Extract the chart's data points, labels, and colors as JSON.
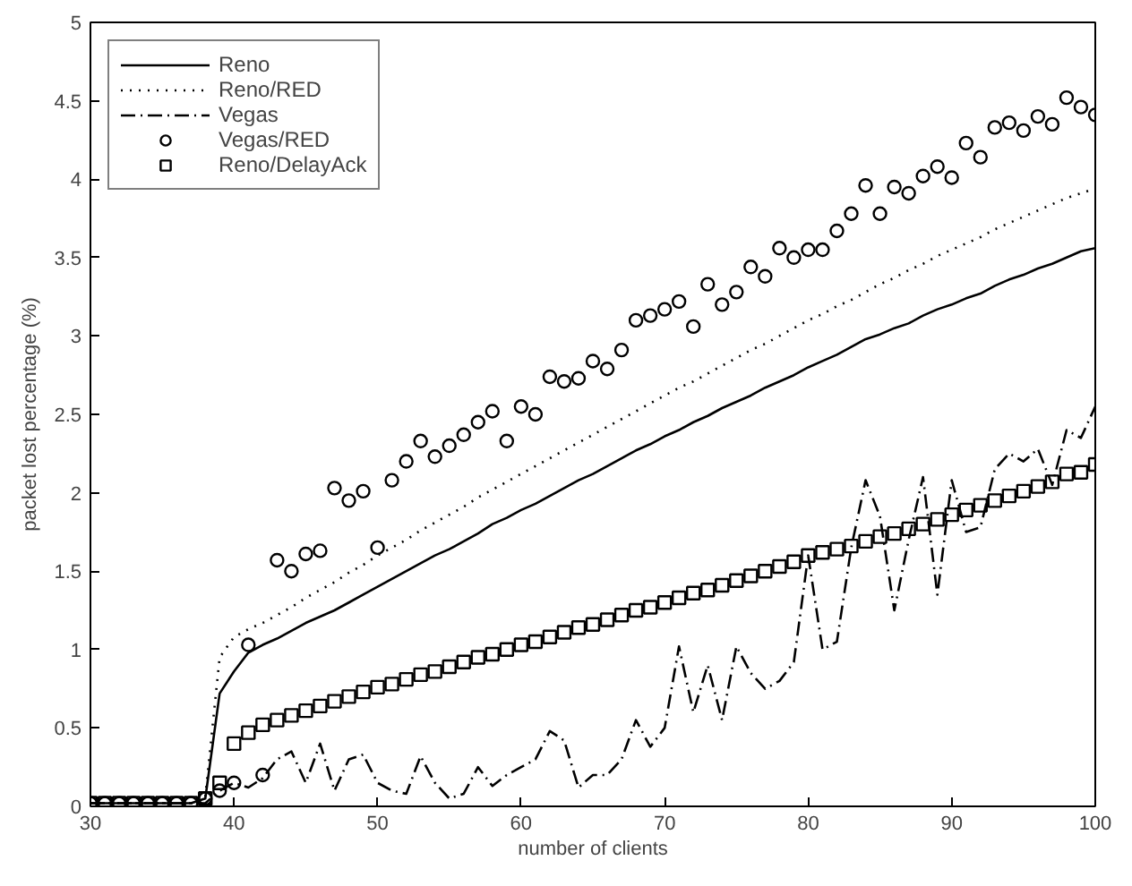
{
  "chart_data": {
    "type": "line",
    "xlabel": "number of clients",
    "ylabel": "packet lost percentage (%)",
    "x": [
      30,
      31,
      32,
      33,
      34,
      35,
      36,
      37,
      38,
      39,
      40,
      41,
      42,
      43,
      44,
      45,
      46,
      47,
      48,
      49,
      50,
      51,
      52,
      53,
      54,
      55,
      56,
      57,
      58,
      59,
      60,
      61,
      62,
      63,
      64,
      65,
      66,
      67,
      68,
      69,
      70,
      71,
      72,
      73,
      74,
      75,
      76,
      77,
      78,
      79,
      80,
      81,
      82,
      83,
      84,
      85,
      86,
      87,
      88,
      89,
      90,
      91,
      92,
      93,
      94,
      95,
      96,
      97,
      98,
      99,
      100
    ],
    "xlim": [
      30,
      100
    ],
    "xticks": [
      30,
      40,
      50,
      60,
      70,
      80,
      90,
      100
    ],
    "ylim": [
      0,
      5
    ],
    "yticks": [
      0,
      0.5,
      1,
      1.5,
      2,
      2.5,
      3,
      3.5,
      4,
      4.5,
      5
    ],
    "grid": false,
    "legend": "top left",
    "series": [
      {
        "name": "Reno",
        "type": "line",
        "line_style": "solid",
        "color": "#000000",
        "values": [
          0.02,
          0.02,
          0.02,
          0.02,
          0.02,
          0.02,
          0.02,
          0.02,
          0.05,
          0.72,
          0.86,
          0.98,
          1.03,
          1.07,
          1.12,
          1.17,
          1.21,
          1.25,
          1.3,
          1.35,
          1.4,
          1.45,
          1.5,
          1.55,
          1.6,
          1.64,
          1.69,
          1.74,
          1.8,
          1.84,
          1.89,
          1.93,
          1.98,
          2.03,
          2.08,
          2.12,
          2.17,
          2.22,
          2.27,
          2.31,
          2.36,
          2.4,
          2.45,
          2.49,
          2.54,
          2.58,
          2.62,
          2.67,
          2.71,
          2.75,
          2.8,
          2.84,
          2.88,
          2.93,
          2.98,
          3.01,
          3.05,
          3.08,
          3.13,
          3.17,
          3.2,
          3.24,
          3.27,
          3.32,
          3.36,
          3.39,
          3.43,
          3.46,
          3.5,
          3.54,
          3.56
        ]
      },
      {
        "name": "Reno/RED",
        "type": "line",
        "line_style": "dotted",
        "color": "#000000",
        "values": [
          0.02,
          0.02,
          0.02,
          0.02,
          0.02,
          0.02,
          0.02,
          0.02,
          0.06,
          0.95,
          1.08,
          1.13,
          1.17,
          1.22,
          1.27,
          1.33,
          1.38,
          1.43,
          1.49,
          1.54,
          1.6,
          1.65,
          1.7,
          1.76,
          1.81,
          1.86,
          1.91,
          1.97,
          2.02,
          2.07,
          2.12,
          2.17,
          2.22,
          2.27,
          2.32,
          2.37,
          2.42,
          2.47,
          2.52,
          2.57,
          2.62,
          2.67,
          2.71,
          2.76,
          2.81,
          2.86,
          2.91,
          2.95,
          3.0,
          3.05,
          3.1,
          3.14,
          3.19,
          3.23,
          3.28,
          3.33,
          3.37,
          3.42,
          3.46,
          3.51,
          3.55,
          3.59,
          3.63,
          3.68,
          3.72,
          3.76,
          3.8,
          3.84,
          3.88,
          3.91,
          3.94
        ]
      },
      {
        "name": "Vegas",
        "type": "line",
        "line_style": "dashdot",
        "color": "#000000",
        "values": [
          0.02,
          0.02,
          0.02,
          0.02,
          0.02,
          0.02,
          0.02,
          0.02,
          0.02,
          0.1,
          0.15,
          0.12,
          0.18,
          0.3,
          0.35,
          0.15,
          0.4,
          0.1,
          0.3,
          0.33,
          0.15,
          0.1,
          0.08,
          0.32,
          0.15,
          0.05,
          0.08,
          0.25,
          0.13,
          0.2,
          0.25,
          0.3,
          0.48,
          0.42,
          0.12,
          0.2,
          0.2,
          0.3,
          0.55,
          0.38,
          0.5,
          1.02,
          0.6,
          0.9,
          0.55,
          1.02,
          0.85,
          0.75,
          0.8,
          0.92,
          1.6,
          1.0,
          1.05,
          1.65,
          2.08,
          1.85,
          1.25,
          1.7,
          2.1,
          1.35,
          2.08,
          1.75,
          1.78,
          2.15,
          2.25,
          2.2,
          2.28,
          2.05,
          2.4,
          2.35,
          2.55
        ]
      },
      {
        "name": "Vegas/RED",
        "type": "scatter",
        "marker": "circle",
        "color": "#000000",
        "values": [
          0.02,
          0.02,
          0.02,
          0.02,
          0.02,
          0.02,
          0.02,
          0.02,
          0.05,
          0.1,
          0.15,
          1.03,
          0.2,
          1.57,
          1.5,
          1.61,
          1.63,
          2.03,
          1.95,
          2.01,
          1.65,
          2.08,
          2.2,
          2.33,
          2.23,
          2.3,
          2.37,
          2.45,
          2.52,
          2.33,
          2.55,
          2.5,
          2.74,
          2.71,
          2.73,
          2.84,
          2.79,
          2.91,
          3.1,
          3.13,
          3.17,
          3.22,
          3.06,
          3.33,
          3.2,
          3.28,
          3.44,
          3.38,
          3.56,
          3.5,
          3.55,
          3.55,
          3.67,
          3.78,
          3.96,
          3.78,
          3.95,
          3.91,
          4.02,
          4.08,
          4.01,
          4.23,
          4.14,
          4.33,
          4.36,
          4.31,
          4.4,
          4.35,
          4.52,
          4.46,
          4.41
        ]
      },
      {
        "name": "Reno/DelayAck",
        "type": "scatter",
        "marker": "square",
        "color": "#000000",
        "values": [
          0.02,
          0.02,
          0.02,
          0.02,
          0.02,
          0.02,
          0.02,
          0.02,
          0.05,
          0.15,
          0.4,
          0.47,
          0.52,
          0.55,
          0.58,
          0.61,
          0.64,
          0.67,
          0.7,
          0.73,
          0.76,
          0.78,
          0.81,
          0.84,
          0.86,
          0.89,
          0.92,
          0.95,
          0.97,
          1.0,
          1.03,
          1.05,
          1.08,
          1.11,
          1.14,
          1.16,
          1.19,
          1.22,
          1.25,
          1.27,
          1.3,
          1.33,
          1.36,
          1.38,
          1.41,
          1.44,
          1.47,
          1.5,
          1.53,
          1.56,
          1.6,
          1.62,
          1.64,
          1.66,
          1.69,
          1.72,
          1.74,
          1.77,
          1.8,
          1.83,
          1.86,
          1.89,
          1.92,
          1.95,
          1.98,
          2.01,
          2.04,
          2.07,
          2.12,
          2.13,
          2.18
        ]
      }
    ]
  }
}
